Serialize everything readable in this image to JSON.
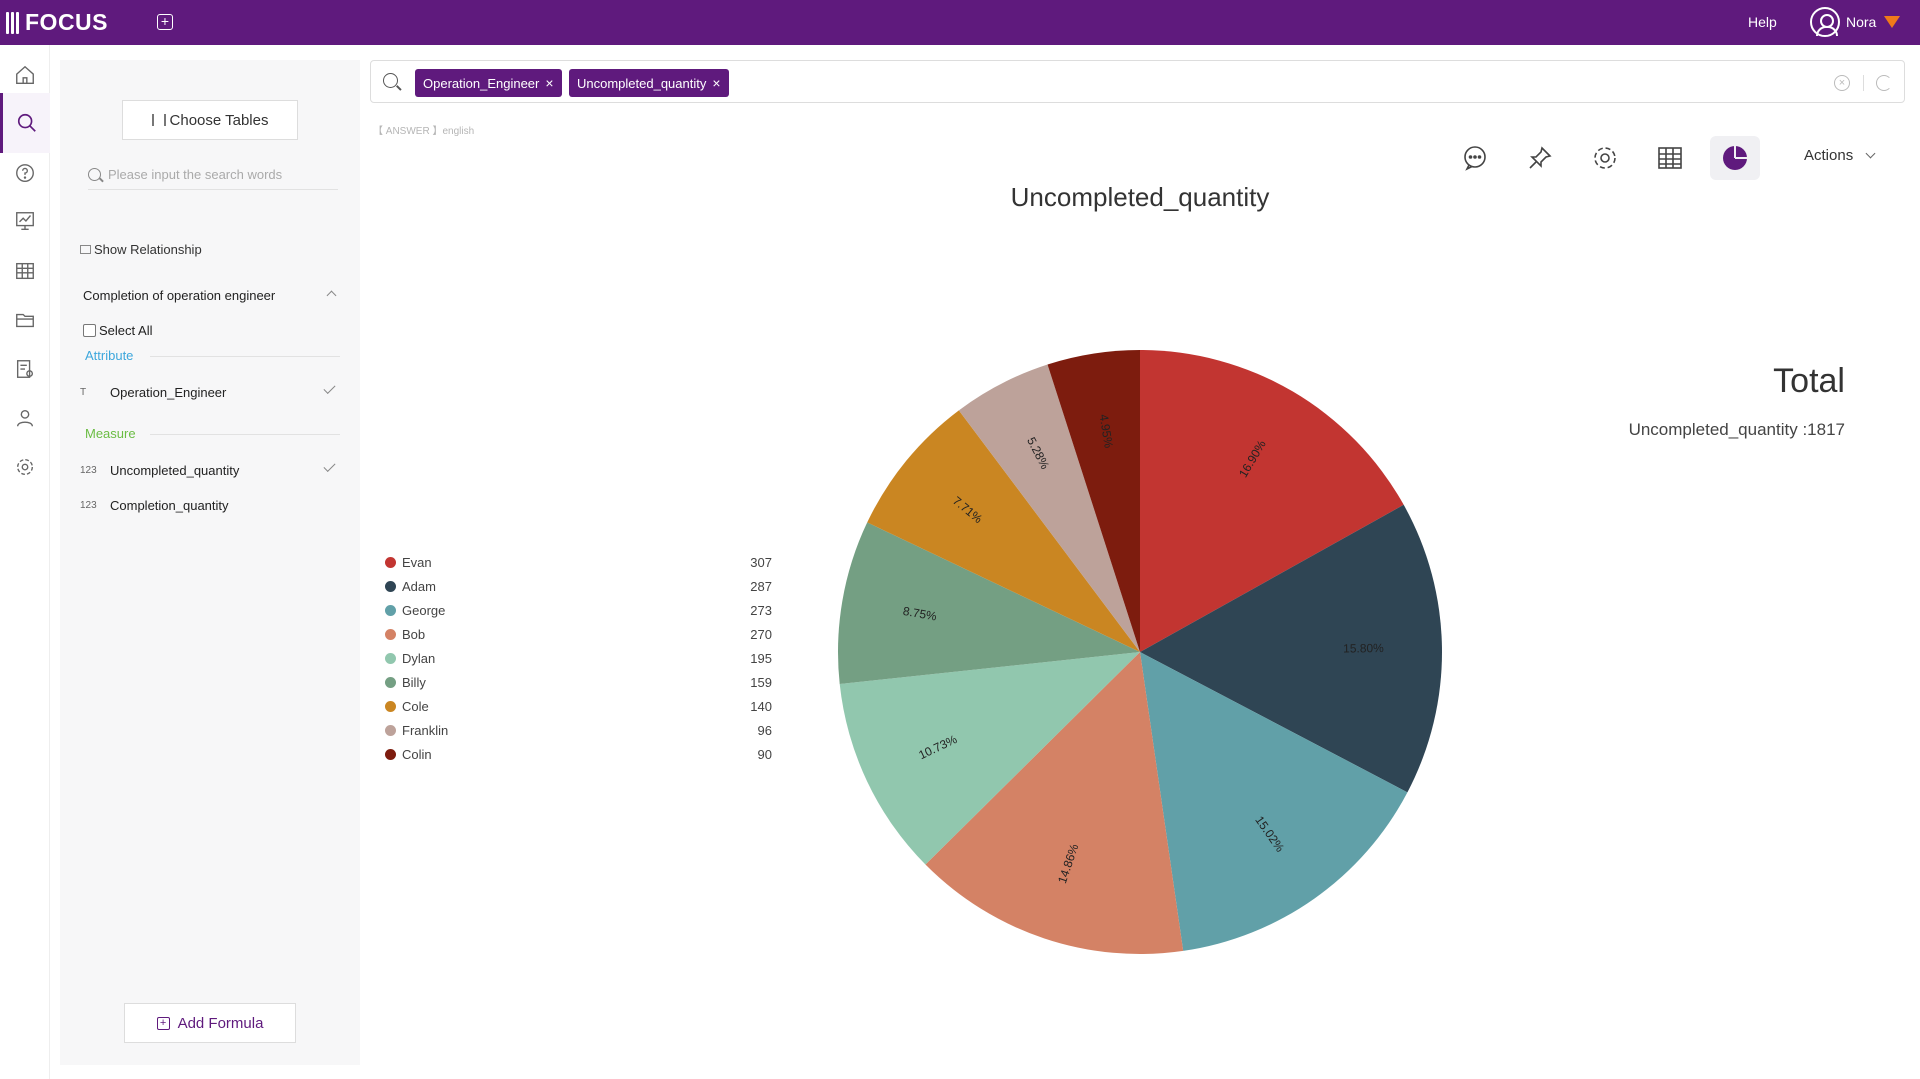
{
  "app": {
    "name": "FOCUS",
    "help": "Help",
    "user": "Nora"
  },
  "sidebar": {
    "choose_tables": "Choose Tables",
    "search_placeholder": "Please input the search words",
    "show_relationship": "Show Relationship",
    "table_name": "Completion of operation engineer",
    "select_all": "Select All",
    "attribute_label": "Attribute",
    "measure_label": "Measure",
    "attributes": [
      {
        "type": "T",
        "name": "Operation_Engineer",
        "checked": true
      }
    ],
    "measures": [
      {
        "type": "123",
        "name": "Uncompleted_quantity",
        "checked": true
      },
      {
        "type": "123",
        "name": "Completion_quantity",
        "checked": false
      }
    ],
    "add_formula": "Add Formula"
  },
  "search": {
    "chips": [
      "Operation_Engineer",
      "Uncompleted_quantity"
    ],
    "answer_tag": "【 ANSWER 】english"
  },
  "toolbar": {
    "icons": [
      "comment-icon",
      "pin-icon",
      "settings-icon",
      "table-view-icon",
      "pie-chart-icon"
    ],
    "actions_label": "Actions"
  },
  "total": {
    "title": "Total",
    "line": "Uncompleted_quantity :1817"
  },
  "chart_data": {
    "type": "pie",
    "title": "Uncompleted_quantity",
    "categories": [
      "Evan",
      "Adam",
      "George",
      "Bob",
      "Dylan",
      "Billy",
      "Cole",
      "Franklin",
      "Colin"
    ],
    "values": [
      307,
      287,
      273,
      270,
      195,
      159,
      140,
      96,
      90
    ],
    "labels": [
      "16.90%",
      "15.80%",
      "15.02%",
      "14.86%",
      "10.73%",
      "8.75%",
      "7.71%",
      "5.28%",
      "4.95%"
    ],
    "colors": [
      "#c23531",
      "#2f4554",
      "#61a0a8",
      "#d48265",
      "#91c7ae",
      "#749f83",
      "#ca8622",
      "#bda29a",
      "#7d1c0e"
    ],
    "legend_position": "left"
  }
}
